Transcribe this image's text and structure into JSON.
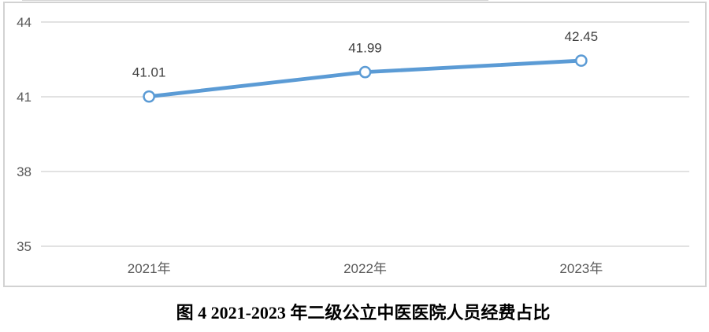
{
  "chart_data": {
    "type": "line",
    "categories": [
      "2021年",
      "2022年",
      "2023年"
    ],
    "values": [
      41.01,
      41.99,
      42.45
    ],
    "data_labels": [
      "41.01",
      "41.99",
      "42.45"
    ],
    "y_ticks": [
      44,
      41,
      38,
      35
    ],
    "ylim": [
      35,
      44
    ],
    "grid": true,
    "legend": "none",
    "marker_style": "open-circle",
    "line_color": "#5B9BD5",
    "title": "图 4 2021-2023 年二级公立中医医院人员经费占比",
    "title_position": "below-chart",
    "xlabel": "",
    "ylabel": ""
  },
  "colors": {
    "background": "#ffffff",
    "frame_border": "#d2d2d2",
    "gridline": "#d9d9d9",
    "tick_label": "#595959",
    "data_label": "#3f3f3f",
    "line": "#5B9BD5",
    "marker_fill": "#ffffff",
    "title": "#000000"
  }
}
